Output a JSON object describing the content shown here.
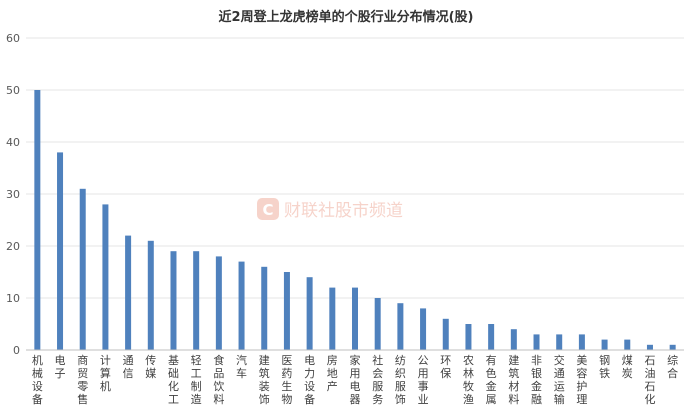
{
  "chart_data": {
    "type": "bar",
    "title": "近2周登上龙虎榜单的个股行业分布情况(股)",
    "categories": [
      "机械设备",
      "电子",
      "商贸零售",
      "计算机",
      "通信",
      "传媒",
      "基础化工",
      "轻工制造",
      "食品饮料",
      "汽车",
      "建筑装饰",
      "医药生物",
      "电力设备",
      "房地产",
      "家用电器",
      "社会服务",
      "纺织服饰",
      "公用事业",
      "环保",
      "农林牧渔",
      "有色金属",
      "建筑材料",
      "非银金融",
      "交通运输",
      "美容护理",
      "钢铁",
      "煤炭",
      "石油石化",
      "综合"
    ],
    "values": [
      50,
      38,
      31,
      28,
      22,
      21,
      19,
      19,
      18,
      17,
      16,
      15,
      14,
      12,
      12,
      10,
      9,
      8,
      6,
      5,
      5,
      4,
      3,
      3,
      3,
      2,
      2,
      1,
      1
    ],
    "ylim": [
      0,
      60
    ],
    "yticks": [
      "0",
      "10",
      "20",
      "30",
      "40",
      "50",
      "60"
    ],
    "grid": true,
    "bar_color": "#4f81bd",
    "watermark": "财联社股市频道",
    "watermark_color": "#e8836b"
  }
}
